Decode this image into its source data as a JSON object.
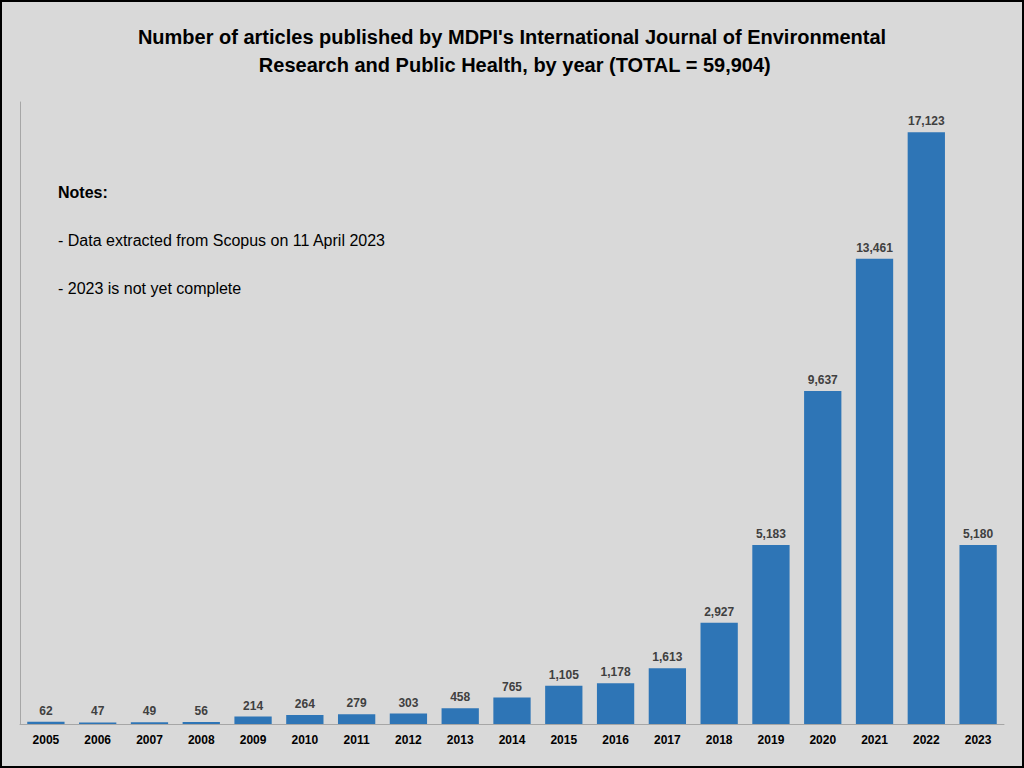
{
  "chart_data": {
    "type": "bar",
    "title": "Number of articles published by MDPI's International Journal of Environmental Research and Public Health, by year (TOTAL = 59,904)",
    "annotations": [
      "Notes:",
      "- Data extracted from Scopus on 11 April 2023",
      "- 2023 is not yet complete"
    ],
    "categories": [
      "2005",
      "2006",
      "2007",
      "2008",
      "2009",
      "2010",
      "2011",
      "2012",
      "2013",
      "2014",
      "2015",
      "2016",
      "2017",
      "2018",
      "2019",
      "2020",
      "2021",
      "2022",
      "2023"
    ],
    "values": [
      62,
      47,
      49,
      56,
      214,
      264,
      279,
      303,
      458,
      765,
      1105,
      1178,
      1613,
      2927,
      5183,
      9637,
      13461,
      17123,
      5180
    ],
    "value_labels": [
      "62",
      "47",
      "49",
      "56",
      "214",
      "264",
      "279",
      "303",
      "458",
      "765",
      "1,105",
      "1,178",
      "1,613",
      "2,927",
      "5,183",
      "9,637",
      "13,461",
      "17,123",
      "5,180"
    ],
    "color": "#2e75b6",
    "ylim": [
      0,
      18000
    ],
    "grid": false,
    "data_labels": true,
    "tick_labels": "x"
  }
}
